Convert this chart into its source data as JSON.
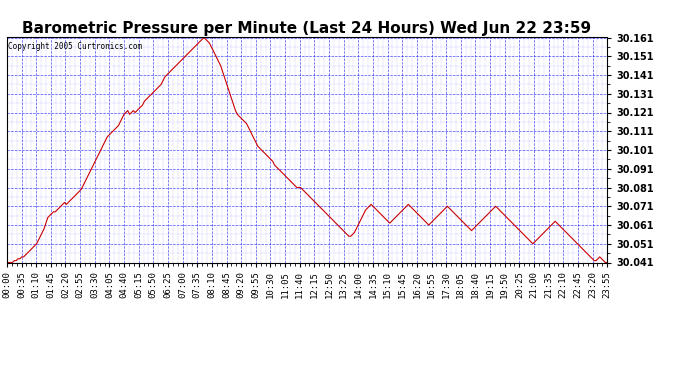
{
  "title": "Barometric Pressure per Minute (Last 24 Hours) Wed Jun 22 23:59",
  "copyright": "Copyright 2005 Curtronics.com",
  "ylim": [
    30.041,
    30.161
  ],
  "yticks": [
    30.041,
    30.051,
    30.061,
    30.071,
    30.081,
    30.091,
    30.101,
    30.111,
    30.121,
    30.131,
    30.141,
    30.151,
    30.161
  ],
  "background_color": "#ffffff",
  "grid_color": "#0000ff",
  "line_color": "#cc0000",
  "title_fontsize": 11,
  "tick_fontsize": 6.5,
  "x_tick_labels": [
    "00:00",
    "00:35",
    "01:10",
    "01:45",
    "02:20",
    "02:55",
    "03:30",
    "04:05",
    "04:40",
    "05:15",
    "05:50",
    "06:25",
    "07:00",
    "07:35",
    "08:10",
    "08:45",
    "09:20",
    "09:55",
    "10:30",
    "11:05",
    "11:40",
    "12:15",
    "12:50",
    "13:25",
    "14:00",
    "14:35",
    "15:10",
    "15:45",
    "16:20",
    "16:55",
    "17:30",
    "18:05",
    "18:40",
    "19:15",
    "19:50",
    "20:25",
    "21:00",
    "21:35",
    "22:10",
    "22:45",
    "23:20",
    "23:55"
  ],
  "pressure_data": [
    30.041,
    30.041,
    30.041,
    30.041,
    30.042,
    30.042,
    30.043,
    30.043,
    30.044,
    30.044,
    30.045,
    30.046,
    30.047,
    30.048,
    30.049,
    30.05,
    30.051,
    30.053,
    30.055,
    30.057,
    30.059,
    30.062,
    30.065,
    30.066,
    30.067,
    30.068,
    30.068,
    30.069,
    30.07,
    30.071,
    30.072,
    30.073,
    30.072,
    30.073,
    30.074,
    30.075,
    30.076,
    30.077,
    30.078,
    30.079,
    30.08,
    30.082,
    30.084,
    30.086,
    30.088,
    30.09,
    30.092,
    30.094,
    30.096,
    30.098,
    30.1,
    30.102,
    30.104,
    30.106,
    30.108,
    30.109,
    30.11,
    30.111,
    30.112,
    30.113,
    30.114,
    30.116,
    30.118,
    30.12,
    30.121,
    30.122,
    30.12,
    30.121,
    30.122,
    30.121,
    30.122,
    30.123,
    30.124,
    30.125,
    30.127,
    30.128,
    30.129,
    30.13,
    30.131,
    30.132,
    30.133,
    30.134,
    30.135,
    30.136,
    30.138,
    30.14,
    30.141,
    30.142,
    30.143,
    30.144,
    30.145,
    30.146,
    30.147,
    30.148,
    30.149,
    30.15,
    30.151,
    30.152,
    30.153,
    30.154,
    30.155,
    30.156,
    30.157,
    30.158,
    30.159,
    30.16,
    30.161,
    30.16,
    30.159,
    30.158,
    30.156,
    30.154,
    30.152,
    30.15,
    30.148,
    30.146,
    30.143,
    30.14,
    30.137,
    30.134,
    30.131,
    30.128,
    30.125,
    30.122,
    30.12,
    30.119,
    30.118,
    30.117,
    30.116,
    30.115,
    30.113,
    30.111,
    30.109,
    30.107,
    30.105,
    30.103,
    30.102,
    30.101,
    30.1,
    30.099,
    30.098,
    30.097,
    30.096,
    30.095,
    30.093,
    30.092,
    30.091,
    30.09,
    30.089,
    30.088,
    30.087,
    30.086,
    30.085,
    30.084,
    30.083,
    30.082,
    30.081,
    30.081,
    30.081,
    30.08,
    30.079,
    30.078,
    30.077,
    30.076,
    30.075,
    30.074,
    30.073,
    30.072,
    30.071,
    30.07,
    30.069,
    30.068,
    30.067,
    30.066,
    30.065,
    30.064,
    30.063,
    30.062,
    30.061,
    30.06,
    30.059,
    30.058,
    30.057,
    30.056,
    30.055,
    30.055,
    30.056,
    30.057,
    30.059,
    30.061,
    30.063,
    30.065,
    30.067,
    30.069,
    30.07,
    30.071,
    30.072,
    30.071,
    30.07,
    30.069,
    30.068,
    30.067,
    30.066,
    30.065,
    30.064,
    30.063,
    30.062,
    30.063,
    30.064,
    30.065,
    30.066,
    30.067,
    30.068,
    30.069,
    30.07,
    30.071,
    30.072,
    30.071,
    30.07,
    30.069,
    30.068,
    30.067,
    30.066,
    30.065,
    30.064,
    30.063,
    30.062,
    30.061,
    30.062,
    30.063,
    30.064,
    30.065,
    30.066,
    30.067,
    30.068,
    30.069,
    30.07,
    30.071,
    30.07,
    30.069,
    30.068,
    30.067,
    30.066,
    30.065,
    30.064,
    30.063,
    30.062,
    30.061,
    30.06,
    30.059,
    30.058,
    30.059,
    30.06,
    30.061,
    30.062,
    30.063,
    30.064,
    30.065,
    30.066,
    30.067,
    30.068,
    30.069,
    30.07,
    30.071,
    30.07,
    30.069,
    30.068,
    30.067,
    30.066,
    30.065,
    30.064,
    30.063,
    30.062,
    30.061,
    30.06,
    30.059,
    30.058,
    30.057,
    30.056,
    30.055,
    30.054,
    30.053,
    30.052,
    30.051,
    30.052,
    30.053,
    30.054,
    30.055,
    30.056,
    30.057,
    30.058,
    30.059,
    30.06,
    30.061,
    30.062,
    30.063,
    30.062,
    30.061,
    30.06,
    30.059,
    30.058,
    30.057,
    30.056,
    30.055,
    30.054,
    30.053,
    30.052,
    30.051,
    30.05,
    30.049,
    30.048,
    30.047,
    30.046,
    30.045,
    30.044,
    30.043,
    30.042,
    30.042,
    30.043,
    30.044,
    30.043,
    30.042,
    30.041,
    30.041
  ]
}
